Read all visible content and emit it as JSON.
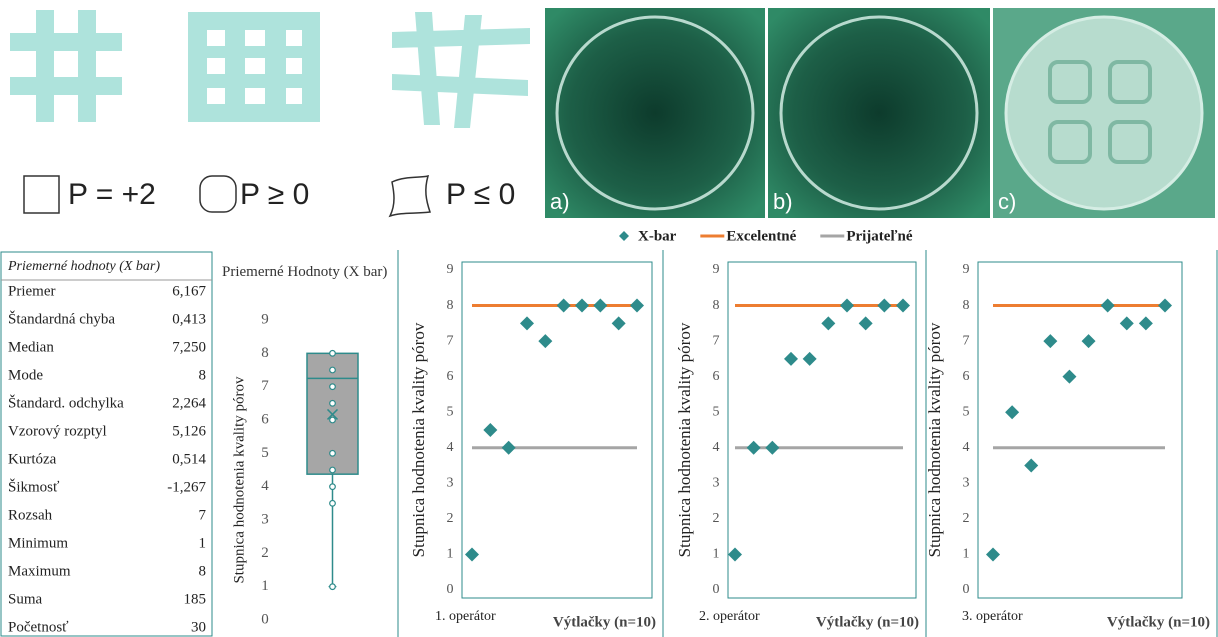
{
  "figure": {
    "shape_labels": [
      "P = +2",
      "P ≥ 0",
      "P ≤ 0"
    ],
    "photo_labels": [
      "a)",
      "b)",
      "c)"
    ]
  },
  "table": {
    "title": "Priemerné hodnoty (X bar)",
    "rows": [
      [
        "Priemer",
        "6,167"
      ],
      [
        "Štandardná chyba",
        "0,413"
      ],
      [
        "Median",
        "7,250"
      ],
      [
        "Mode",
        "8"
      ],
      [
        "Štandard. odchylka",
        "2,264"
      ],
      [
        "Vzorový rozptyl",
        "5,126"
      ],
      [
        "Kurtóza",
        "0,514"
      ],
      [
        "Šikmosť",
        "-1,267"
      ],
      [
        "Rozsah",
        "7"
      ],
      [
        "Minimum",
        "1"
      ],
      [
        "Maximum",
        "8"
      ],
      [
        "Suma",
        "185"
      ],
      [
        "Početnosť",
        "30"
      ]
    ]
  },
  "chart_data": [
    {
      "type": "box",
      "title": "Priemerné Hodnoty (X bar)",
      "ylabel": "Stupnica hodnotenia kvality pórov",
      "ylim": [
        0,
        9
      ],
      "yticks": [
        0,
        1,
        2,
        3,
        4,
        5,
        6,
        7,
        8,
        9
      ],
      "color": "#a6a6a6",
      "line_color": "#2e8b8b",
      "box": {
        "min": 1,
        "q1": 4.375,
        "median": 7.25,
        "q3": 8,
        "max": 8,
        "mean": 6.167
      },
      "points": [
        8,
        7.5,
        7,
        6.5,
        6,
        5,
        4.5,
        4,
        3.5,
        1
      ]
    },
    {
      "type": "scatter",
      "ylabel": "Stupnica hodnotenia kvality pórov",
      "group_label": "1. operátor",
      "xlabel": "Výtlačky (n=10)",
      "categories": [
        null,
        null,
        null,
        null,
        null,
        null,
        null,
        null,
        null,
        null
      ],
      "ylim": [
        0,
        9
      ],
      "yticks": [
        0,
        1,
        2,
        3,
        4,
        5,
        6,
        7,
        8,
        9
      ],
      "series": [
        {
          "name": "X-bar",
          "type": "scatter",
          "color": "#2e8b8b",
          "values": [
            1,
            4.5,
            4,
            7.5,
            7,
            8,
            8,
            8,
            7.5,
            8
          ]
        },
        {
          "name": "Excelentné",
          "type": "line",
          "color": "#ed7d31",
          "values": [
            8,
            8,
            8,
            8,
            8,
            8,
            8,
            8,
            8,
            8
          ]
        },
        {
          "name": "Prijateľné",
          "type": "line",
          "color": "#a5a5a5",
          "values": [
            4,
            4,
            4,
            4,
            4,
            4,
            4,
            4,
            4,
            4
          ]
        }
      ]
    },
    {
      "type": "scatter",
      "ylabel": "Stupnica hodnotenia kvality pórov",
      "group_label": "2. operátor",
      "xlabel": "Výtlačky (n=10)",
      "categories": [
        null,
        null,
        null,
        null,
        null,
        null,
        null,
        null,
        null,
        null
      ],
      "ylim": [
        0,
        9
      ],
      "yticks": [
        0,
        1,
        2,
        3,
        4,
        5,
        6,
        7,
        8,
        9
      ],
      "series": [
        {
          "type": "scatter",
          "color": "#2e8b8b",
          "values": [
            1,
            4,
            4,
            6.5,
            6.5,
            7.5,
            8,
            7.5,
            8,
            8
          ]
        },
        {
          "type": "line",
          "color": "#ed7d31",
          "values": [
            8,
            8,
            8,
            8,
            8,
            8,
            8,
            8,
            8,
            8
          ]
        },
        {
          "type": "line",
          "color": "#a5a5a5",
          "values": [
            4,
            4,
            4,
            4,
            4,
            4,
            4,
            4,
            4,
            4
          ]
        }
      ]
    },
    {
      "type": "scatter",
      "ylabel": "Stupnica hodnotenia kvality pórov",
      "group_label": "3. operátor",
      "xlabel": "Výtlačky (n=10)",
      "categories": [
        null,
        null,
        null,
        null,
        null,
        null,
        null,
        null,
        null,
        null
      ],
      "ylim": [
        0,
        9
      ],
      "yticks": [
        0,
        1,
        2,
        3,
        4,
        5,
        6,
        7,
        8,
        9
      ],
      "series": [
        {
          "type": "scatter",
          "color": "#2e8b8b",
          "values": [
            1,
            5,
            3.5,
            7,
            6,
            7,
            8,
            7.5,
            7.5,
            8
          ]
        },
        {
          "type": "line",
          "color": "#ed7d31",
          "values": [
            8,
            8,
            8,
            8,
            8,
            8,
            8,
            8,
            8,
            8
          ]
        },
        {
          "type": "line",
          "color": "#a5a5a5",
          "values": [
            4,
            4,
            4,
            4,
            4,
            4,
            4,
            4,
            4,
            4
          ]
        }
      ]
    }
  ]
}
